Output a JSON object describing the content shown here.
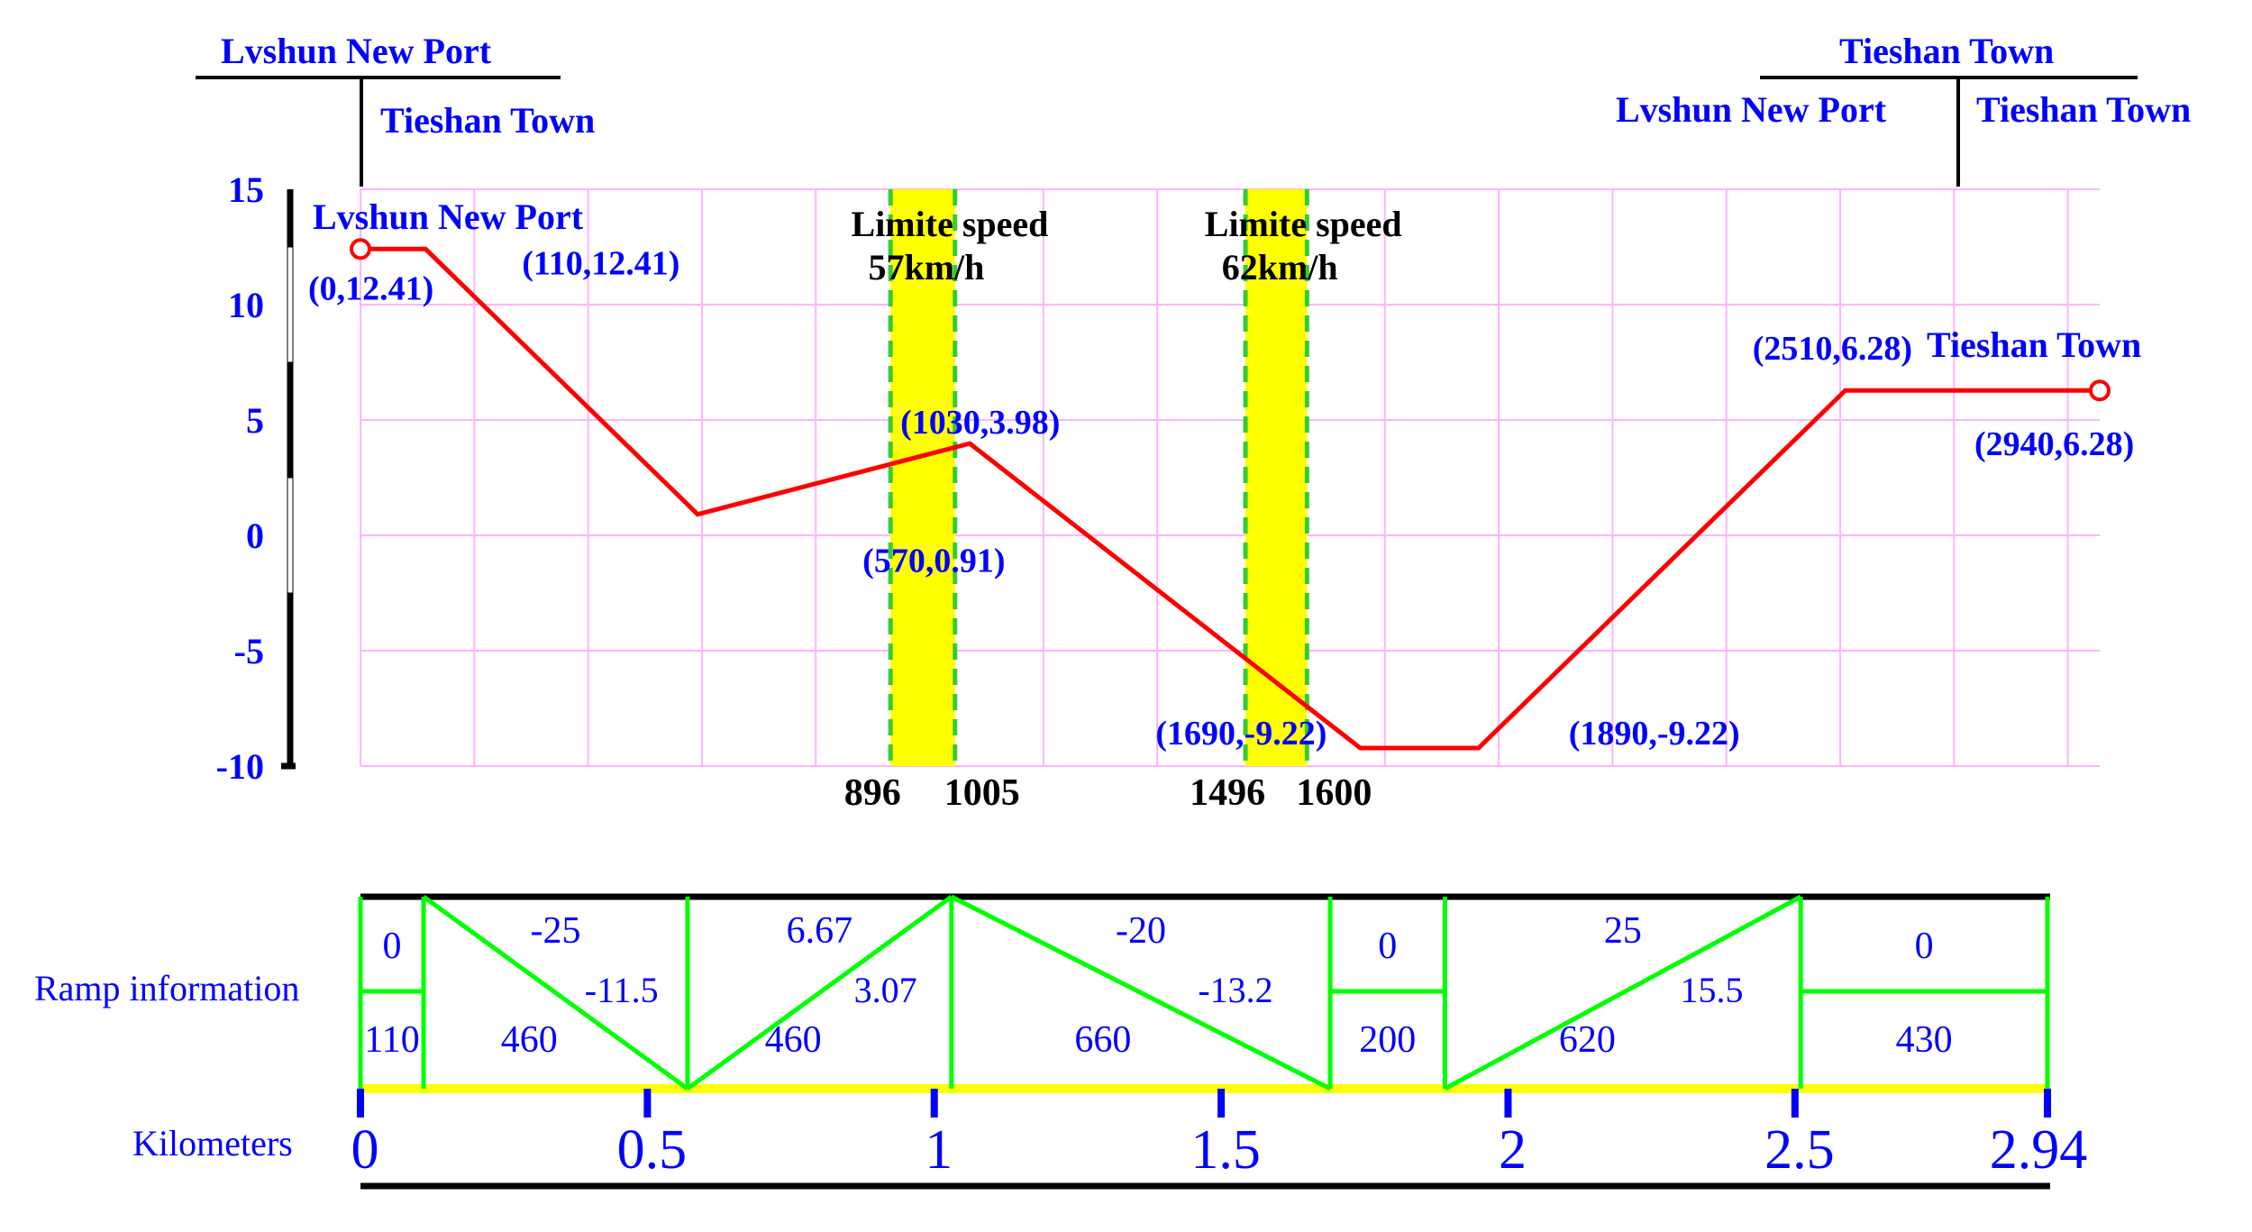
{
  "header": {
    "left_origin": "Lvshun New Port",
    "left_dest": "Tieshan Town",
    "right_top": "Tieshan Town",
    "right_left": "Lvshun New Port",
    "right_right": "Tieshan Town"
  },
  "chart_data": {
    "type": "line",
    "xlim": [
      0,
      2940
    ],
    "ylim": [
      -10,
      15
    ],
    "yticks": [
      "15",
      "10",
      "5",
      "0",
      "-5",
      "-10"
    ],
    "grid": true,
    "series": [
      {
        "x": [
          0,
          110,
          570,
          1030,
          1690,
          1890,
          2510,
          2940
        ],
        "y": [
          12.41,
          12.41,
          0.91,
          3.98,
          -9.22,
          -9.22,
          6.28,
          6.28
        ]
      }
    ],
    "point_labels": [
      "(0,12.41)",
      "(110,12.41)",
      "(570,0.91)",
      "(1030,3.98)",
      "(1690,-9.22)",
      "(1890,-9.22)",
      "(2510,6.28)",
      "(2940,6.28)"
    ],
    "start_station": "Lvshun New Port",
    "end_station": "Tieshan Town",
    "speed_limits": [
      {
        "line1": "Limite speed",
        "line2": "57km/h",
        "start": 896,
        "end": 1005,
        "start_label": "896",
        "end_label": "1005"
      },
      {
        "line1": "Limite speed",
        "line2": "62km/h",
        "start": 1496,
        "end": 1600,
        "start_label": "1496",
        "end_label": "1600"
      }
    ]
  },
  "ramps": {
    "label": "Ramp information",
    "segments": [
      {
        "type": "flat",
        "grade": "0",
        "length": "110",
        "start": 0,
        "end": 110
      },
      {
        "type": "down",
        "grade": "-25",
        "value": "-11.5",
        "length": "460",
        "start": 110,
        "end": 570
      },
      {
        "type": "up",
        "grade": "6.67",
        "value": "3.07",
        "length": "460",
        "start": 570,
        "end": 1030
      },
      {
        "type": "down",
        "grade": "-20",
        "value": "-13.2",
        "length": "660",
        "start": 1030,
        "end": 1690
      },
      {
        "type": "flat",
        "grade": "0",
        "length": "200",
        "start": 1690,
        "end": 1890
      },
      {
        "type": "up",
        "grade": "25",
        "value": "15.5",
        "length": "620",
        "start": 1890,
        "end": 2510
      },
      {
        "type": "flat",
        "grade": "0",
        "length": "430",
        "start": 2510,
        "end": 2940
      }
    ]
  },
  "kilometers": {
    "label": "Kilometers",
    "ticks": [
      {
        "text": "0",
        "km": 0
      },
      {
        "text": "0.5",
        "km": 0.5
      },
      {
        "text": "1",
        "km": 1
      },
      {
        "text": "1.5",
        "km": 1.5
      },
      {
        "text": "2",
        "km": 2
      },
      {
        "text": "2.5",
        "km": 2.5
      },
      {
        "text": "2.94",
        "km": 2.94
      }
    ]
  },
  "colors": {
    "profile": "#ff0000",
    "grid": "#ffb3ff",
    "label": "#0000ff",
    "ramp": "#00ff00",
    "speed_zone": "#ffff00",
    "speed_edge": "#33cc33"
  }
}
